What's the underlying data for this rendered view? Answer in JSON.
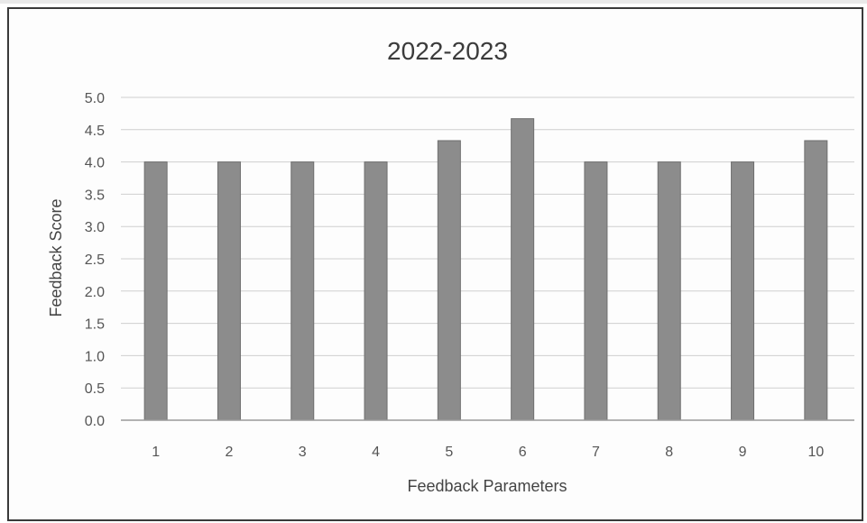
{
  "chart_data": {
    "type": "bar",
    "title": "2022-2023",
    "xlabel": "Feedback Parameters",
    "ylabel": "Feedback Score",
    "categories": [
      "1",
      "2",
      "3",
      "4",
      "5",
      "6",
      "7",
      "8",
      "9",
      "10"
    ],
    "values": [
      4.0,
      4.0,
      4.0,
      4.0,
      4.33,
      4.67,
      4.0,
      4.0,
      4.0,
      4.33
    ],
    "ylim": [
      0,
      5
    ],
    "yticks": [
      "0.0",
      "0.5",
      "1.0",
      "1.5",
      "2.0",
      "2.5",
      "3.0",
      "3.5",
      "4.0",
      "4.5",
      "5.0"
    ],
    "grid": true,
    "legend": "none",
    "colors": {
      "bar": "#8c8c8c",
      "bar_edge": "#6f6f6f",
      "grid": "#cfcfcf",
      "axis": "#9a9a9a"
    }
  }
}
